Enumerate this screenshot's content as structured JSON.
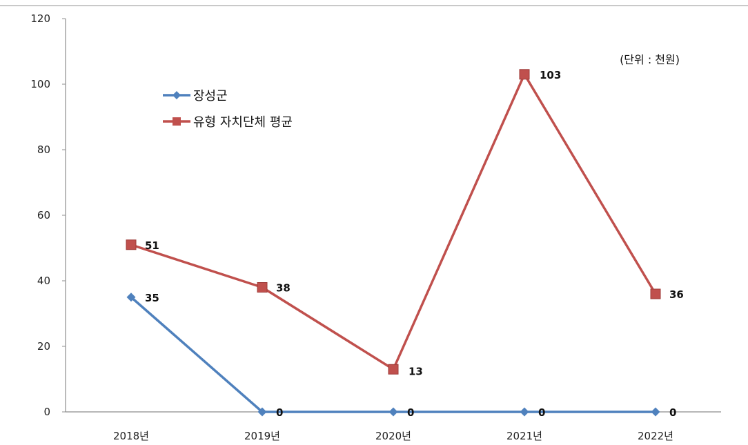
{
  "chart_data": {
    "type": "line",
    "categories": [
      "2018년",
      "2019년",
      "2020년",
      "2021년",
      "2022년"
    ],
    "ylim": [
      0,
      120
    ],
    "yticks": [
      0,
      20,
      40,
      60,
      80,
      100,
      120
    ],
    "unit_note": "(단위 : 천원)",
    "legend_position": "upper-left",
    "grid": false,
    "series": [
      {
        "name": "장성군",
        "values": [
          35,
          0,
          0,
          0,
          0
        ],
        "color": "#4f81bd",
        "marker": "diamond"
      },
      {
        "name": "유형 자치단체 평균",
        "values": [
          51,
          38,
          13,
          103,
          36
        ],
        "color": "#c0504d",
        "marker": "square"
      }
    ]
  }
}
